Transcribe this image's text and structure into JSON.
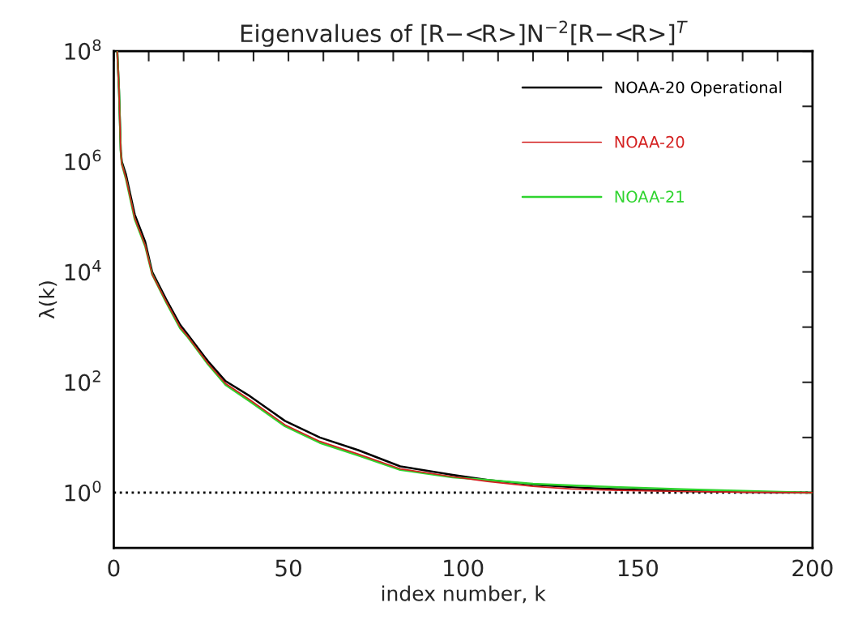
{
  "chart_data": {
    "type": "line",
    "title": "Eigenvalues of [R−<R>]N$^{−2}$[R−<R>]$^{T}$",
    "xlabel": "index number, k",
    "ylabel": "λ(k)",
    "log": "y",
    "grid": false,
    "legend": "top right",
    "line_style": "solid",
    "marker": "none",
    "xlim": [
      0,
      200
    ],
    "ylim": [
      0.1,
      100000000
    ],
    "xticks": [
      0,
      {
        "value": 10,
        "label": null
      },
      {
        "value": 20,
        "label": null
      },
      {
        "value": 30,
        "label": null
      },
      {
        "value": 40,
        "label": null
      },
      50,
      {
        "value": 60,
        "label": null
      },
      {
        "value": 70,
        "label": null
      },
      {
        "value": 80,
        "label": null
      },
      {
        "value": 90,
        "label": null
      },
      100,
      {
        "value": 110,
        "label": null
      },
      {
        "value": 120,
        "label": null
      },
      {
        "value": 130,
        "label": null
      },
      {
        "value": 140,
        "label": null
      },
      150,
      {
        "value": 160,
        "label": null
      },
      {
        "value": 170,
        "label": null
      },
      {
        "value": 180,
        "label": null
      },
      {
        "value": 190,
        "label": null
      },
      200
    ],
    "yticks": [
      {
        "value": 1,
        "label": "10$^{0}$"
      },
      {
        "value": 10,
        "label": null
      },
      {
        "value": 100,
        "label": "10$^{2}$"
      },
      {
        "value": 1000,
        "label": null
      },
      {
        "value": 10000,
        "label": "10$^{4}$"
      },
      {
        "value": 100000,
        "label": null
      },
      {
        "value": 1000000,
        "label": "10$^{6}$"
      },
      {
        "value": 10000000,
        "label": null
      },
      {
        "value": 100000000,
        "label": "10$^{8}$"
      }
    ],
    "ref_lines": [
      {
        "axis": "y",
        "value": 1,
        "color": "#000000",
        "line_style": "dotted"
      }
    ],
    "series": [
      {
        "name": "NOAA-20 Operational",
        "color": "#000000",
        "x": [
          1,
          1.5,
          2,
          2.3,
          3.5,
          6,
          9,
          11,
          15,
          19,
          21,
          27,
          32,
          39,
          49,
          59,
          70,
          82,
          97,
          107,
          120,
          131,
          145,
          163,
          180,
          200
        ],
        "values": [
          100000000,
          20000000,
          1600000,
          1000000,
          580000,
          110000,
          35000,
          10000,
          3200,
          1100,
          760,
          240,
          105,
          56,
          20,
          10,
          5.9,
          3.0,
          2.1,
          1.7,
          1.4,
          1.26,
          1.15,
          1.07,
          1.03,
          1.0
        ]
      },
      {
        "name": "NOAA-20",
        "color": "#d42020",
        "x": [
          1,
          1.5,
          2,
          2.3,
          3.5,
          6,
          9,
          11,
          15,
          19,
          21,
          27,
          32,
          39,
          49,
          59,
          70,
          82,
          97,
          107,
          120,
          131,
          145,
          163,
          180,
          200
        ],
        "values": [
          100000000,
          20000000,
          1500000,
          900000,
          500000,
          95000,
          30000,
          9000,
          2900,
          1000,
          700,
          220,
          95,
          48,
          17,
          8.5,
          5.0,
          2.7,
          1.95,
          1.6,
          1.3,
          1.17,
          1.1,
          1.05,
          1.02,
          1.0
        ]
      },
      {
        "name": "NOAA-21",
        "color": "#2fd42f",
        "x": [
          1,
          1.5,
          2,
          2.3,
          3.5,
          6,
          9,
          11,
          15,
          19,
          21,
          27,
          32,
          39,
          49,
          59,
          70,
          82,
          97,
          107,
          120,
          131,
          145,
          163,
          180,
          200
        ],
        "values": [
          100000000,
          20000000,
          1500000,
          900000,
          480000,
          90000,
          29000,
          9000,
          2800,
          950,
          680,
          210,
          90,
          45,
          16,
          8,
          4.7,
          2.6,
          1.9,
          1.7,
          1.45,
          1.35,
          1.25,
          1.15,
          1.08,
          1.0
        ]
      }
    ]
  }
}
